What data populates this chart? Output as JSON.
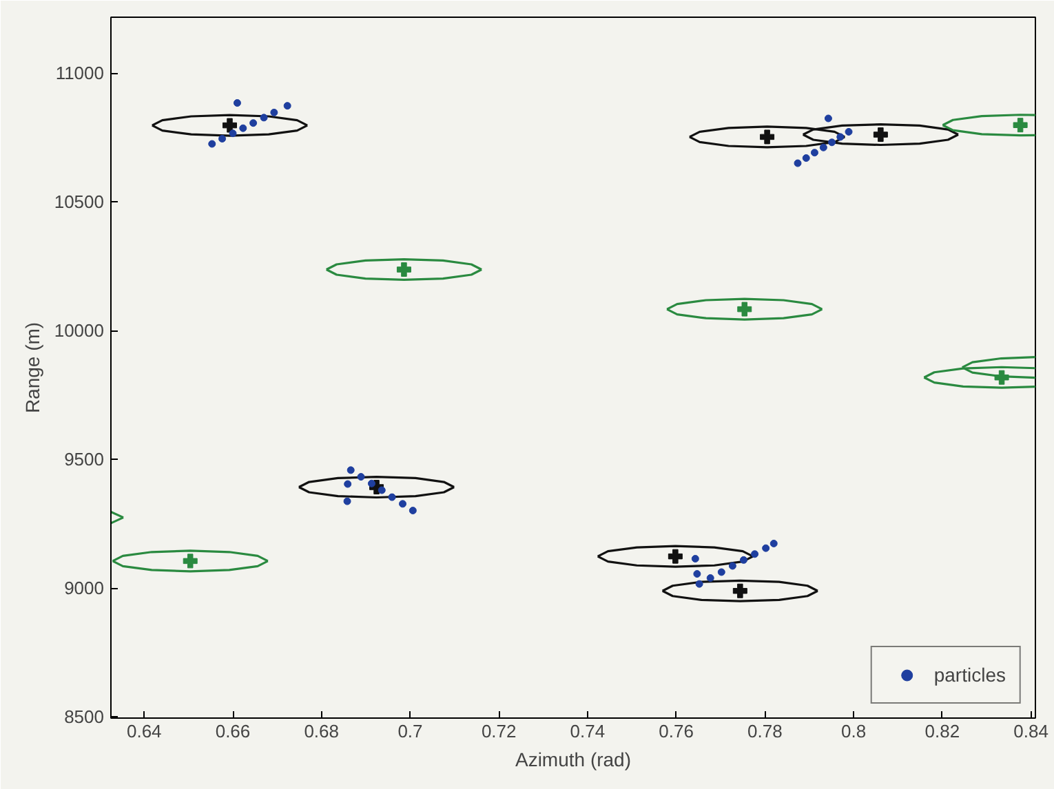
{
  "chart_data": {
    "type": "scatter",
    "xlabel": "Azimuth (rad)",
    "ylabel": "Range (m)",
    "xlim": [
      0.6325,
      0.841
    ],
    "ylim": [
      8495,
      11217
    ],
    "xticks": [
      0.64,
      0.66,
      0.68,
      0.7,
      0.72,
      0.74,
      0.76,
      0.78,
      0.8,
      0.82,
      0.84
    ],
    "yticks": [
      8500,
      9000,
      9500,
      10000,
      10500,
      11000
    ],
    "legend": "bottom right",
    "series": [
      {
        "type": "line",
        "marker": "none",
        "color": "#111111",
        "x": [
          0.6418,
          0.6441,
          0.6506,
          0.6593,
          0.6681,
          0.6745,
          0.6768
        ],
        "values": [
          10797,
          10817,
          10832,
          10837,
          10832,
          10817,
          10797
        ]
      },
      {
        "type": "line",
        "marker": "none",
        "color": "#111111",
        "x": [
          0.6418,
          0.6441,
          0.6506,
          0.6593,
          0.6681,
          0.6745,
          0.6768
        ],
        "values": [
          10797,
          10777,
          10762,
          10757,
          10762,
          10777,
          10797
        ]
      },
      {
        "type": "line",
        "marker": "none",
        "color": "#2a8a40",
        "x": [
          0.6811,
          0.6834,
          0.6899,
          0.6986,
          0.7074,
          0.7138,
          0.7161
        ],
        "values": [
          10237,
          10257,
          10272,
          10277,
          10272,
          10257,
          10237
        ]
      },
      {
        "type": "line",
        "marker": "none",
        "color": "#2a8a40",
        "x": [
          0.6811,
          0.6834,
          0.6899,
          0.6986,
          0.7074,
          0.7138,
          0.7161
        ],
        "values": [
          10237,
          10217,
          10202,
          10197,
          10202,
          10217,
          10237
        ]
      },
      {
        "type": "line",
        "marker": "none",
        "color": "#111111",
        "x": [
          0.763,
          0.7653,
          0.7718,
          0.7805,
          0.7893,
          0.7957,
          0.798
        ],
        "values": [
          10752,
          10772,
          10787,
          10792,
          10787,
          10772,
          10752
        ]
      },
      {
        "type": "line",
        "marker": "none",
        "color": "#111111",
        "x": [
          0.763,
          0.7653,
          0.7718,
          0.7805,
          0.7893,
          0.7957,
          0.798
        ],
        "values": [
          10752,
          10732,
          10717,
          10712,
          10717,
          10732,
          10752
        ]
      },
      {
        "type": "line",
        "marker": "none",
        "color": "#111111",
        "x": [
          0.7886,
          0.7909,
          0.7974,
          0.8061,
          0.8149,
          0.8213,
          0.8236
        ],
        "values": [
          10761,
          10781,
          10796,
          10801,
          10796,
          10781,
          10761
        ]
      },
      {
        "type": "line",
        "marker": "none",
        "color": "#111111",
        "x": [
          0.7886,
          0.7909,
          0.7974,
          0.8061,
          0.8149,
          0.8213,
          0.8236
        ],
        "values": [
          10761,
          10741,
          10726,
          10721,
          10726,
          10741,
          10761
        ]
      },
      {
        "type": "line",
        "marker": "none",
        "color": "#2a8a40",
        "x": [
          0.8201,
          0.8224,
          0.8289,
          0.8376,
          0.841
        ],
        "values": [
          10798,
          10818,
          10833,
          10838,
          10837
        ]
      },
      {
        "type": "line",
        "marker": "none",
        "color": "#2a8a40",
        "x": [
          0.8201,
          0.8224,
          0.8289,
          0.8376,
          0.841
        ],
        "values": [
          10798,
          10778,
          10763,
          10758,
          10759
        ]
      },
      {
        "type": "line",
        "marker": "none",
        "color": "#2a8a40",
        "x": [
          0.7579,
          0.7602,
          0.7667,
          0.7754,
          0.7842,
          0.7906,
          0.7929
        ],
        "values": [
          10083,
          10103,
          10118,
          10123,
          10118,
          10103,
          10083
        ]
      },
      {
        "type": "line",
        "marker": "none",
        "color": "#2a8a40",
        "x": [
          0.7579,
          0.7602,
          0.7667,
          0.7754,
          0.7842,
          0.7906,
          0.7929
        ],
        "values": [
          10083,
          10063,
          10048,
          10043,
          10048,
          10063,
          10083
        ]
      },
      {
        "type": "line",
        "marker": "none",
        "color": "#2a8a40",
        "x": [
          0.8159,
          0.8182,
          0.8247,
          0.8334,
          0.841
        ],
        "values": [
          9818,
          9838,
          9853,
          9858,
          9854
        ]
      },
      {
        "type": "line",
        "marker": "none",
        "color": "#2a8a40",
        "x": [
          0.8159,
          0.8182,
          0.8247,
          0.8334,
          0.841
        ],
        "values": [
          9818,
          9798,
          9783,
          9778,
          9782
        ]
      },
      {
        "type": "line",
        "marker": "none",
        "color": "#2a8a40",
        "x": [
          0.8245,
          0.8268,
          0.8333,
          0.841
        ],
        "values": [
          9857,
          9877,
          9892,
          9897
        ]
      },
      {
        "type": "line",
        "marker": "none",
        "color": "#2a8a40",
        "x": [
          0.8245,
          0.8268,
          0.8333,
          0.841
        ],
        "values": [
          9857,
          9837,
          9822,
          9817
        ]
      },
      {
        "type": "line",
        "marker": "none",
        "color": "#2a8a40",
        "x": [
          0.6325,
          0.6353
        ],
        "values": [
          9296,
          9274
        ]
      },
      {
        "type": "line",
        "marker": "none",
        "color": "#2a8a40",
        "x": [
          0.6325,
          0.6353
        ],
        "values": [
          9252,
          9274
        ]
      },
      {
        "type": "line",
        "marker": "none",
        "color": "#2a8a40",
        "x": [
          0.6329,
          0.6352,
          0.6417,
          0.6504,
          0.6592,
          0.6656,
          0.6679
        ],
        "values": [
          9105,
          9125,
          9140,
          9145,
          9140,
          9125,
          9105
        ]
      },
      {
        "type": "line",
        "marker": "none",
        "color": "#2a8a40",
        "x": [
          0.6329,
          0.6352,
          0.6417,
          0.6504,
          0.6592,
          0.6656,
          0.6679
        ],
        "values": [
          9105,
          9085,
          9070,
          9065,
          9070,
          9085,
          9105
        ]
      },
      {
        "type": "line",
        "marker": "none",
        "color": "#111111",
        "x": [
          0.6749,
          0.6772,
          0.6837,
          0.6924,
          0.7012,
          0.7076,
          0.7099
        ],
        "values": [
          9392,
          9412,
          9427,
          9432,
          9427,
          9412,
          9392
        ]
      },
      {
        "type": "line",
        "marker": "none",
        "color": "#111111",
        "x": [
          0.6749,
          0.6772,
          0.6837,
          0.6924,
          0.7012,
          0.7076,
          0.7099
        ],
        "values": [
          9392,
          9372,
          9357,
          9352,
          9357,
          9372,
          9392
        ]
      },
      {
        "type": "line",
        "marker": "none",
        "color": "#111111",
        "x": [
          0.7423,
          0.7446,
          0.7511,
          0.7598,
          0.7686,
          0.775,
          0.7773
        ],
        "values": [
          9123,
          9143,
          9158,
          9163,
          9158,
          9143,
          9123
        ]
      },
      {
        "type": "line",
        "marker": "none",
        "color": "#111111",
        "x": [
          0.7423,
          0.7446,
          0.7511,
          0.7598,
          0.7686,
          0.775,
          0.7773
        ],
        "values": [
          9123,
          9103,
          9088,
          9083,
          9088,
          9103,
          9123
        ]
      },
      {
        "type": "line",
        "marker": "none",
        "color": "#111111",
        "x": [
          0.7569,
          0.7592,
          0.7657,
          0.7744,
          0.7832,
          0.7896,
          0.7919
        ],
        "values": [
          8989,
          9009,
          9024,
          9029,
          9024,
          9009,
          8989
        ]
      },
      {
        "type": "line",
        "marker": "none",
        "color": "#111111",
        "x": [
          0.7569,
          0.7592,
          0.7657,
          0.7744,
          0.7832,
          0.7896,
          0.7919
        ],
        "values": [
          8989,
          8969,
          8954,
          8949,
          8954,
          8969,
          8989
        ]
      },
      {
        "marker": "cross",
        "color": "#111111",
        "x": [
          0.6593,
          0.7805,
          0.8061,
          0.6924,
          0.7598,
          0.7744
        ],
        "values": [
          10797,
          10752,
          10761,
          9392,
          9123,
          8989
        ]
      },
      {
        "marker": "cross",
        "color": "#2a8a40",
        "x": [
          0.6986,
          0.8376,
          0.7754,
          0.8334,
          0.6504
        ],
        "values": [
          10237,
          10798,
          10083,
          9818,
          9105
        ]
      },
      {
        "marker": "circle",
        "name": "particles",
        "color": "#1f3f9f",
        "x": [
          0.6553,
          0.6576,
          0.66,
          0.6623,
          0.6646,
          0.667,
          0.6693,
          0.661,
          0.6723,
          0.7874,
          0.7893,
          0.7912,
          0.7932,
          0.7951,
          0.797,
          0.7989,
          0.7943,
          0.6866,
          0.6889,
          0.6913,
          0.6936,
          0.6959,
          0.6983,
          0.7006,
          0.6859,
          0.6858,
          0.7652,
          0.7677,
          0.7702,
          0.7727,
          0.7752,
          0.7777,
          0.7802,
          0.7643,
          0.7647,
          0.782
        ],
        "values": [
          10725,
          10745,
          10766,
          10786,
          10806,
          10827,
          10847,
          10884,
          10873,
          10650,
          10670,
          10691,
          10711,
          10731,
          10752,
          10772,
          10824,
          9458,
          9432,
          9406,
          9380,
          9353,
          9327,
          9301,
          9404,
          9337,
          9016,
          9039,
          9062,
          9086,
          9109,
          9132,
          9155,
          9114,
          9055,
          9173
        ]
      }
    ]
  }
}
